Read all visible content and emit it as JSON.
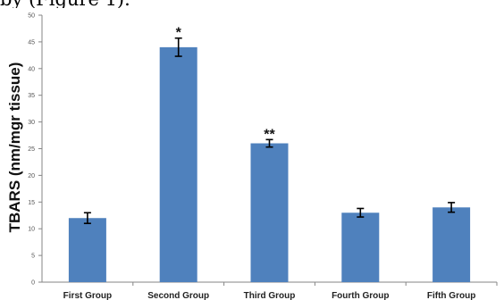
{
  "caption_fragment": "by   (Figure 1).",
  "chart_data": {
    "type": "bar",
    "title": "",
    "xlabel": "",
    "ylabel": "TBARS (nm/mgr tissue)",
    "ylim": [
      0,
      50
    ],
    "yticks": [
      0,
      5,
      10,
      15,
      20,
      25,
      30,
      35,
      40,
      45,
      50
    ],
    "categories": [
      "First Group",
      "Second Group",
      "Third Group",
      "Fourth Group",
      "Fifth Group"
    ],
    "values": [
      12,
      44,
      26,
      13,
      14
    ],
    "errors": [
      1,
      1.7,
      0.7,
      0.8,
      0.9
    ],
    "annotations": [
      "",
      "*",
      "**",
      "",
      ""
    ],
    "bar_color": "#4F81BD",
    "grid": false
  }
}
